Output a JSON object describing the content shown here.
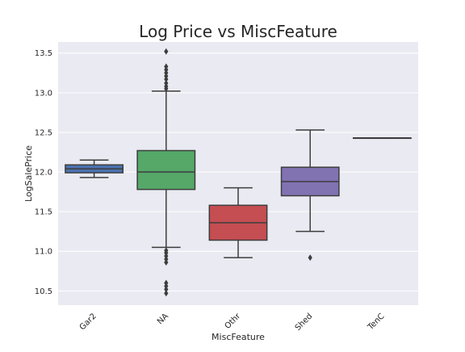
{
  "chart_data": {
    "type": "box",
    "title": "Log Price vs MiscFeature",
    "xlabel": "MiscFeature",
    "ylabel": "LogSalePrice",
    "ylim": [
      10.32,
      13.64
    ],
    "yticks": [
      10.5,
      11.0,
      11.5,
      12.0,
      12.5,
      13.0,
      13.5
    ],
    "ytick_labels": [
      "10.5",
      "11.0",
      "11.5",
      "12.0",
      "12.5",
      "13.0",
      "13.5"
    ],
    "grid": true,
    "categories": [
      "Gar2",
      "NA",
      "Othr",
      "Shed",
      "TenC"
    ],
    "boxes": [
      {
        "category": "Gar2",
        "color": "#4c72b0",
        "whisker_low": 11.93,
        "q1": 11.99,
        "median": 12.04,
        "q3": 12.09,
        "whisker_high": 12.15,
        "outliers": []
      },
      {
        "category": "NA",
        "color": "#55a868",
        "whisker_low": 11.05,
        "q1": 11.78,
        "median": 12.0,
        "q3": 12.27,
        "whisker_high": 13.02,
        "outliers": [
          13.05,
          13.08,
          13.12,
          13.17,
          13.21,
          13.25,
          13.29,
          13.33,
          13.52,
          11.01,
          10.98,
          10.94,
          10.9,
          10.86,
          10.6,
          10.56,
          10.52,
          10.47
        ]
      },
      {
        "category": "Othr",
        "color": "#c44e52",
        "whisker_low": 10.92,
        "q1": 11.14,
        "median": 11.36,
        "q3": 11.58,
        "whisker_high": 11.8,
        "outliers": []
      },
      {
        "category": "Shed",
        "color": "#8172b2",
        "whisker_low": 11.25,
        "q1": 11.7,
        "median": 11.88,
        "q3": 12.06,
        "whisker_high": 12.53,
        "outliers": [
          10.92
        ]
      },
      {
        "category": "TenC",
        "color": "#ccb974",
        "whisker_low": 12.43,
        "q1": 12.43,
        "median": 12.43,
        "q3": 12.43,
        "whisker_high": 12.43,
        "outliers": []
      }
    ]
  },
  "colors": {
    "background": "#eaeaf2",
    "grid": "#ffffff",
    "line": "#3d3d3d",
    "text": "#262626"
  }
}
